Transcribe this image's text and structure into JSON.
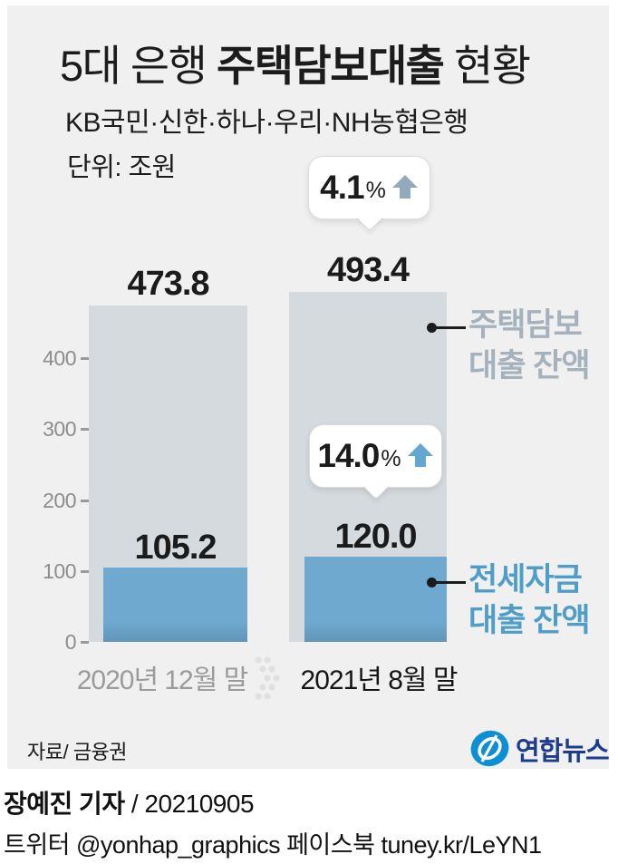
{
  "title": {
    "prefix": "5대 은행 ",
    "emphasis": "주택담보대출",
    "suffix": " 현황"
  },
  "subtitle": "KB국민·신한·하나·우리·NH농협은행",
  "unit_label": "단위: 조원",
  "chart_data": {
    "type": "bar",
    "title": "5대 은행 주택담보대출 현황",
    "unit": "조원",
    "categories": [
      "2020년 12월 말",
      "2021년 8월 말"
    ],
    "series": [
      {
        "name": "주택담보 대출 잔액",
        "values": [
          473.8,
          493.4
        ],
        "color": "#d5dade"
      },
      {
        "name": "전세자금 대출 잔액",
        "values": [
          105.2,
          120.0
        ],
        "color": "#6fa9cf"
      }
    ],
    "value_labels": {
      "gray_left": "473.8",
      "gray_right": "493.4",
      "blue_left": "105.2",
      "blue_right": "120.0"
    },
    "yticks": [
      0,
      100,
      200,
      300,
      400
    ],
    "ylim": [
      0,
      500
    ],
    "grid": false,
    "callouts": [
      {
        "value": "4.1",
        "sign": "%",
        "direction": "up",
        "arrow_color": "#93a9bc"
      },
      {
        "value": "14.0",
        "sign": "%",
        "direction": "up",
        "arrow_color": "#64a7d4"
      }
    ],
    "annotations": [
      {
        "line1": "주택담보",
        "line2": "대출 잔액",
        "color": "#a5b2bc"
      },
      {
        "line1": "전세자금",
        "line2": "대출 잔액",
        "color": "#4f9dc9"
      }
    ]
  },
  "source": "자료/ 금융권",
  "logo_text": "연합뉴스",
  "credits": {
    "byline_bold": "장예진 기자",
    "byline_rest": " / 20210905",
    "social_line": "트위터 @yonhap_graphics  페이스북 tuney.kr/LeYN1"
  },
  "colors": {
    "page_bg": "#ffffff",
    "panel_bg": "#f0f0f0",
    "bar_gray": "#d5dade",
    "bar_blue": "#6fa9cf",
    "tick_text": "#8d8d8d",
    "category_muted": "#9b9b9b",
    "category_active": "#161616",
    "annotation_gray": "#a5b2bc",
    "annotation_blue": "#4f9dc9",
    "logo_circle_blue": "#0d8fd5",
    "logo_navy": "#1d3c8e"
  }
}
